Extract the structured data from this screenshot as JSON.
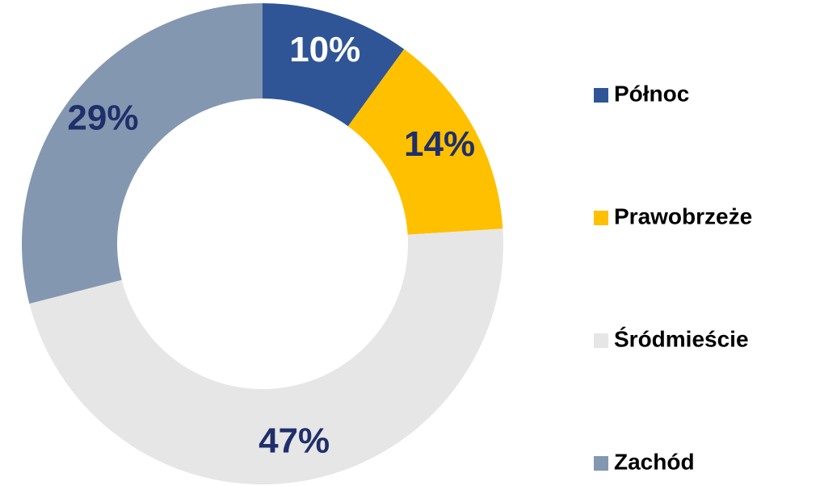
{
  "chart_data": {
    "type": "donut",
    "categories": [
      "Północ",
      "Prawobrzeże",
      "Śródmieście",
      "Zachód"
    ],
    "values": [
      10,
      14,
      47,
      29
    ],
    "value_labels": [
      "10%",
      "14%",
      "47%",
      "29%"
    ],
    "colors": [
      "#2f5597",
      "#ffc000",
      "#e7e6e6",
      "#8497b0"
    ],
    "label_colors": [
      "#ffffff",
      "#1f2f6b",
      "#1f2f6b",
      "#1f2f6b"
    ],
    "legend": "right"
  }
}
